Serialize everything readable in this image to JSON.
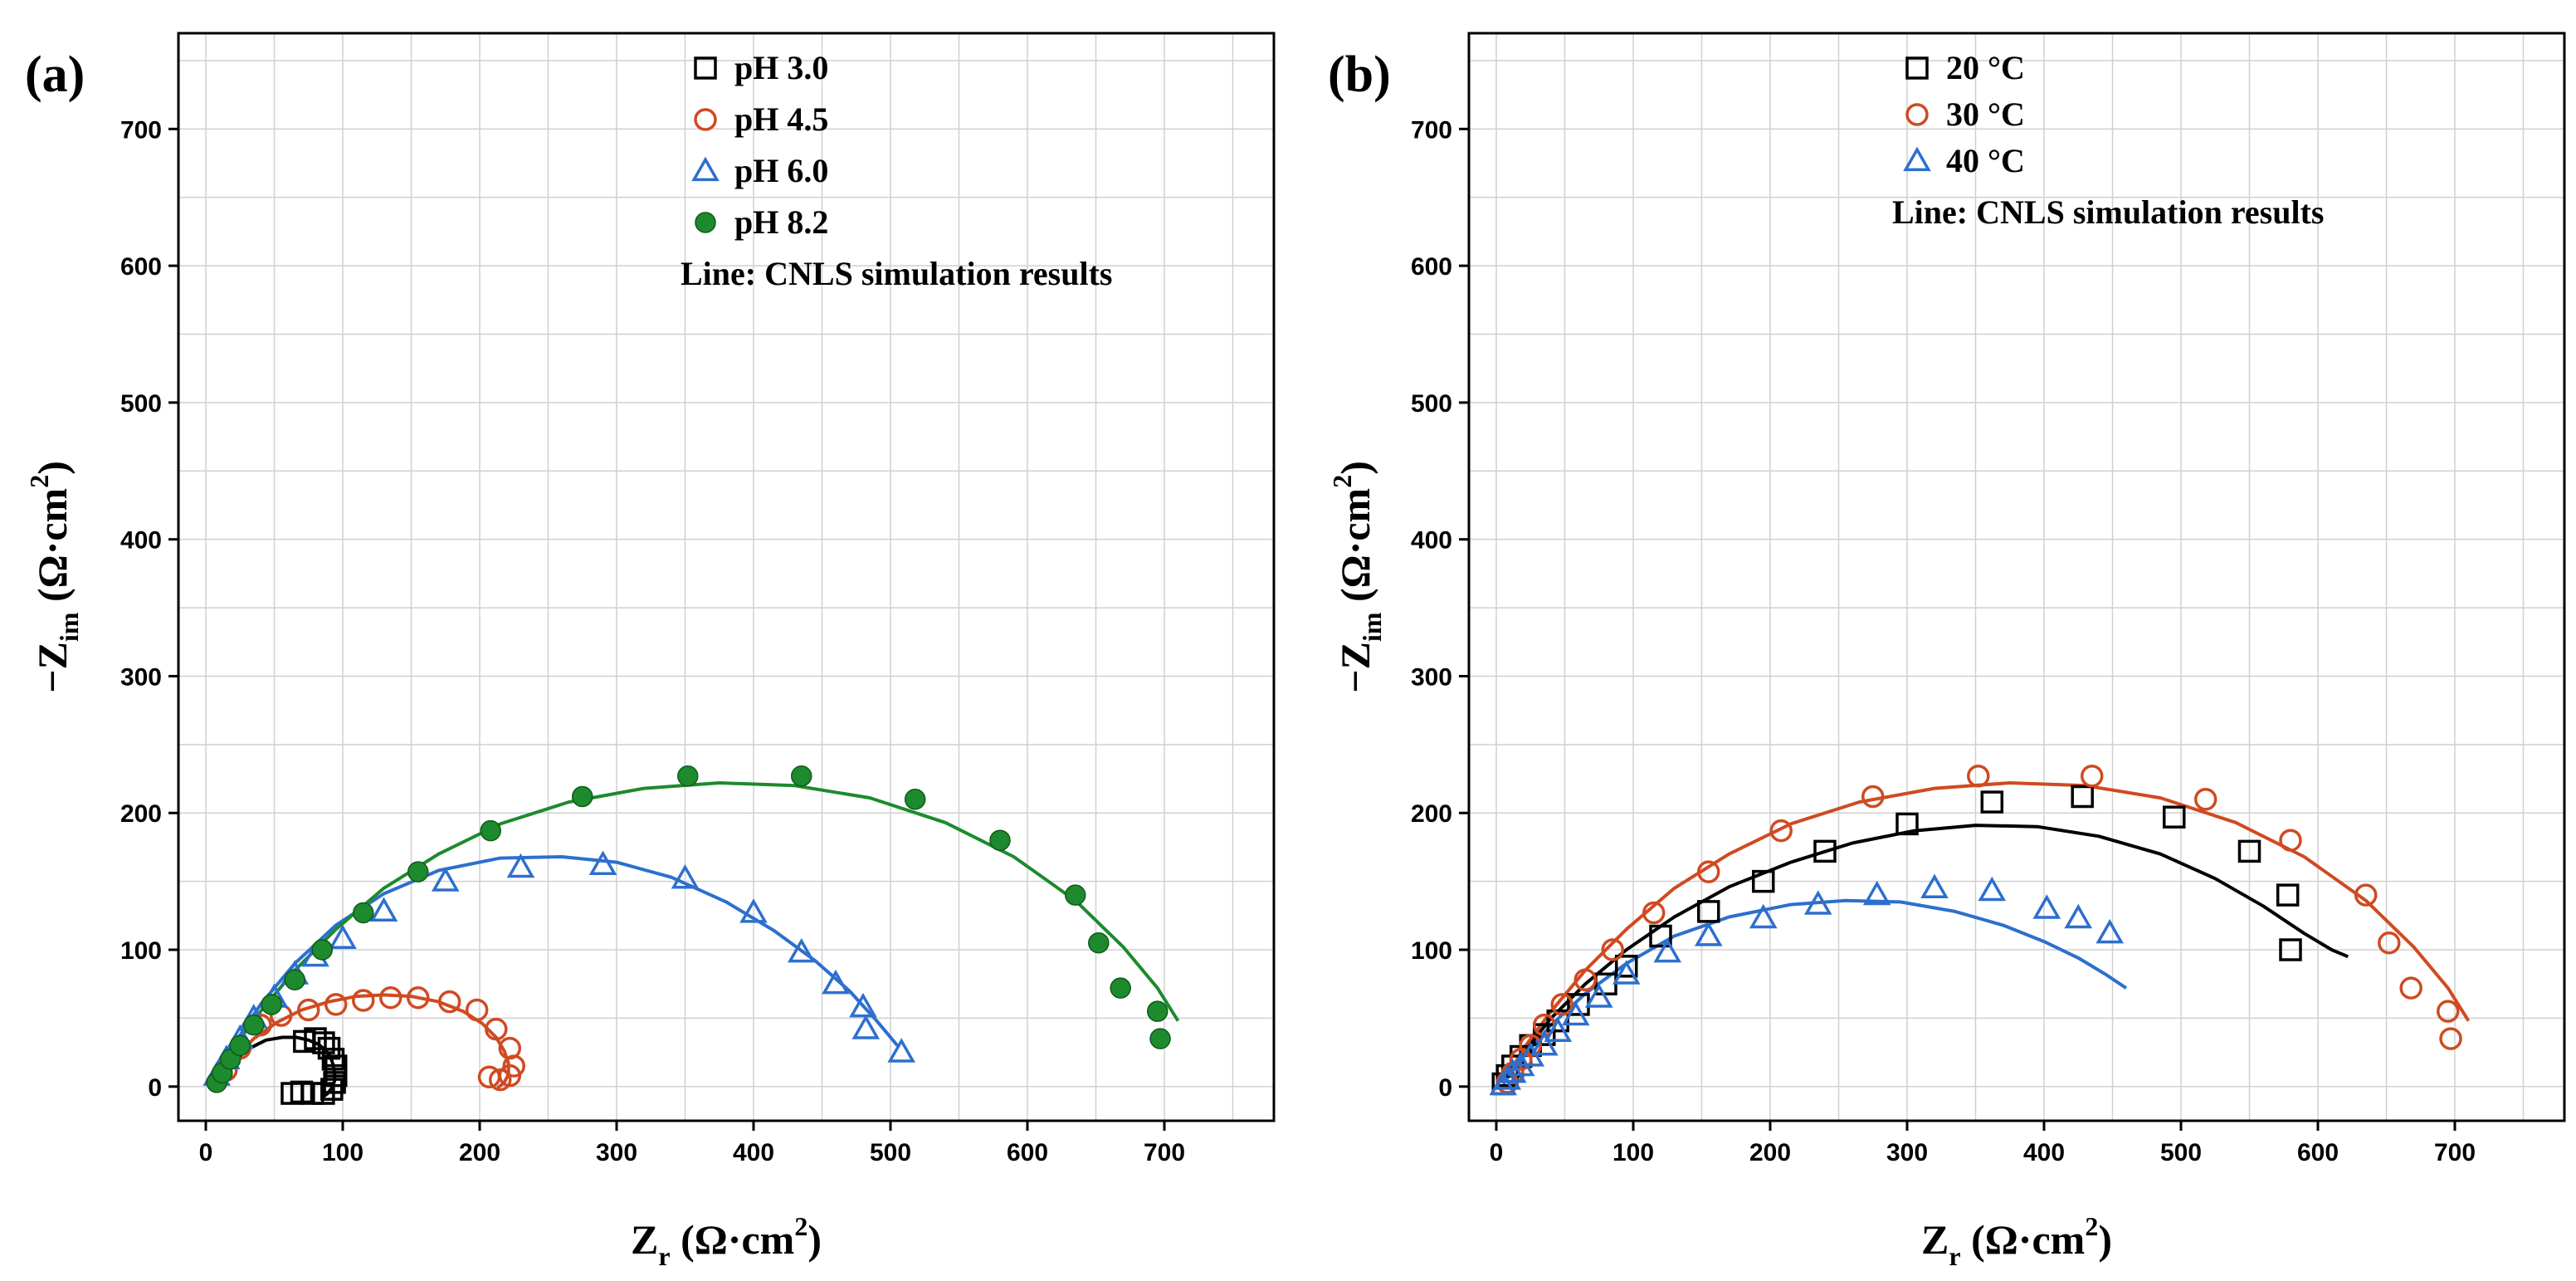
{
  "chart_data": [
    {
      "type": "scatter",
      "panel_label": "(a)",
      "xlabel": {
        "main": "Z",
        "sub": "r",
        "unit": " (Ω·cm",
        "sup": "2",
        "close": ")"
      },
      "ylabel": {
        "main": "−Z",
        "sub": "im",
        "unit": " (Ω·cm",
        "sup": "2",
        "close": ")"
      },
      "xlim": [
        -20,
        780
      ],
      "ylim": [
        -25,
        770
      ],
      "xticks": [
        0,
        100,
        200,
        300,
        400,
        500,
        600,
        700
      ],
      "yticks": [
        0,
        100,
        200,
        300,
        400,
        500,
        600,
        700
      ],
      "grid": true,
      "legend_position": "top-right",
      "legend_note": "Line: CNLS simulation results",
      "series": [
        {
          "name": "pH 3.0",
          "marker": "square",
          "color": "#000000",
          "x": [
            78,
            86,
            92,
            94,
            95,
            95,
            93,
            90,
            86,
            80,
            72,
            70,
            63
          ],
          "y": [
            -5,
            -5,
            -2,
            3,
            8,
            15,
            20,
            28,
            32,
            35,
            33,
            -4,
            -5
          ],
          "fit_x": [
            8,
            14,
            22,
            32,
            44,
            56,
            66,
            75,
            82,
            87,
            91,
            93,
            94,
            94,
            92,
            89,
            85
          ],
          "fit_y": [
            2,
            10,
            20,
            28,
            34,
            36,
            36,
            34,
            31,
            27,
            22,
            16,
            10,
            4,
            -1,
            -5,
            -8
          ]
        },
        {
          "name": "pH 4.5",
          "marker": "circle",
          "color": "#d04a21",
          "x": [
            15,
            25,
            40,
            55,
            75,
            95,
            115,
            135,
            155,
            178,
            198,
            212,
            222,
            225,
            222,
            215,
            207
          ],
          "y": [
            12,
            28,
            45,
            52,
            56,
            60,
            63,
            65,
            65,
            62,
            56,
            42,
            28,
            15,
            8,
            5,
            7
          ],
          "fit_x": [
            8,
            20,
            35,
            52,
            70,
            90,
            110,
            130,
            150,
            170,
            188,
            202,
            212,
            218,
            221,
            221,
            218,
            213
          ],
          "fit_y": [
            3,
            20,
            35,
            47,
            56,
            62,
            66,
            67,
            66,
            62,
            55,
            46,
            36,
            26,
            17,
            9,
            3,
            -1
          ]
        },
        {
          "name": "pH 6.0",
          "marker": "triangle",
          "color": "#2d6fce",
          "x": [
            8,
            15,
            25,
            35,
            50,
            65,
            80,
            100,
            130,
            175,
            230,
            290,
            350,
            400,
            435,
            460,
            480,
            482,
            508
          ],
          "y": [
            8,
            20,
            35,
            50,
            65,
            82,
            95,
            108,
            128,
            150,
            160,
            162,
            152,
            127,
            98,
            75,
            58,
            42,
            25
          ],
          "fit_x": [
            5,
            20,
            40,
            65,
            95,
            130,
            170,
            215,
            260,
            300,
            340,
            380,
            415,
            445,
            470,
            490,
            505
          ],
          "fit_y": [
            3,
            30,
            60,
            90,
            118,
            141,
            158,
            167,
            168,
            164,
            153,
            135,
            114,
            92,
            70,
            48,
            30
          ]
        },
        {
          "name": "pH 8.2",
          "marker": "filled-circle",
          "color": "#1d8a2d",
          "x": [
            8,
            12,
            18,
            25,
            35,
            48,
            65,
            85,
            115,
            155,
            208,
            275,
            352,
            435,
            518,
            580,
            635,
            652,
            668,
            695,
            697
          ],
          "y": [
            3,
            10,
            20,
            30,
            45,
            60,
            78,
            100,
            127,
            157,
            187,
            212,
            227,
            227,
            210,
            180,
            140,
            105,
            72,
            55,
            35
          ],
          "fit_x": [
            5,
            20,
            40,
            65,
            95,
            130,
            170,
            215,
            265,
            320,
            375,
            430,
            485,
            540,
            590,
            635,
            670,
            695,
            710
          ],
          "fit_y": [
            2,
            28,
            55,
            85,
            115,
            145,
            170,
            192,
            208,
            218,
            222,
            220,
            211,
            193,
            168,
            136,
            102,
            72,
            48
          ]
        }
      ]
    },
    {
      "type": "scatter",
      "panel_label": "(b)",
      "xlabel": {
        "main": "Z",
        "sub": "r",
        "unit": " (Ω·cm",
        "sup": "2",
        "close": ")"
      },
      "ylabel": {
        "main": "−Z",
        "sub": "im",
        "unit": " (Ω·cm",
        "sup": "2",
        "close": ")"
      },
      "xlim": [
        -20,
        780
      ],
      "ylim": [
        -25,
        770
      ],
      "xticks": [
        0,
        100,
        200,
        300,
        400,
        500,
        600,
        700
      ],
      "yticks": [
        0,
        100,
        200,
        300,
        400,
        500,
        600,
        700
      ],
      "grid": true,
      "legend_position": "top-right",
      "legend_note": "Line: CNLS simulation results",
      "series": [
        {
          "name": "20 °C",
          "marker": "square",
          "color": "#000000",
          "x": [
            5,
            8,
            12,
            18,
            25,
            35,
            45,
            60,
            80,
            95,
            120,
            155,
            195,
            240,
            300,
            362,
            428,
            495,
            550,
            578,
            580
          ],
          "y": [
            2,
            8,
            15,
            22,
            30,
            38,
            48,
            60,
            75,
            88,
            110,
            128,
            150,
            172,
            192,
            208,
            212,
            197,
            172,
            140,
            100
          ],
          "fit_x": [
            5,
            20,
            40,
            65,
            95,
            130,
            170,
            215,
            260,
            305,
            350,
            395,
            440,
            485,
            525,
            560,
            590,
            610,
            622
          ],
          "fit_y": [
            5,
            25,
            50,
            75,
            100,
            124,
            146,
            164,
            178,
            187,
            191,
            190,
            183,
            170,
            152,
            132,
            112,
            100,
            95
          ]
        },
        {
          "name": "30 °C",
          "marker": "circle",
          "color": "#d04a21",
          "x": [
            8,
            12,
            18,
            25,
            35,
            48,
            65,
            85,
            115,
            155,
            208,
            275,
            352,
            435,
            518,
            580,
            635,
            652,
            668,
            695,
            697
          ],
          "y": [
            3,
            10,
            20,
            30,
            45,
            60,
            78,
            100,
            127,
            157,
            187,
            212,
            227,
            227,
            210,
            180,
            140,
            105,
            72,
            55,
            35
          ],
          "fit_x": [
            5,
            20,
            40,
            65,
            95,
            130,
            170,
            215,
            265,
            320,
            375,
            430,
            485,
            540,
            590,
            635,
            670,
            695,
            710
          ],
          "fit_y": [
            2,
            28,
            55,
            85,
            115,
            145,
            170,
            192,
            208,
            218,
            222,
            220,
            211,
            193,
            168,
            136,
            102,
            72,
            48
          ]
        },
        {
          "name": "40 °C",
          "marker": "triangle",
          "color": "#2d6fce",
          "x": [
            5,
            8,
            12,
            18,
            25,
            35,
            45,
            58,
            75,
            95,
            125,
            155,
            195,
            235,
            278,
            320,
            362,
            402,
            425,
            448
          ],
          "y": [
            1,
            5,
            10,
            15,
            22,
            30,
            40,
            52,
            65,
            82,
            98,
            110,
            123,
            133,
            140,
            145,
            143,
            130,
            123,
            112
          ],
          "fit_x": [
            5,
            20,
            40,
            65,
            95,
            130,
            170,
            215,
            255,
            295,
            335,
            370,
            400,
            425,
            445,
            460
          ],
          "fit_y": [
            2,
            22,
            45,
            68,
            90,
            110,
            124,
            133,
            136,
            135,
            128,
            118,
            106,
            94,
            82,
            72
          ]
        }
      ]
    }
  ]
}
